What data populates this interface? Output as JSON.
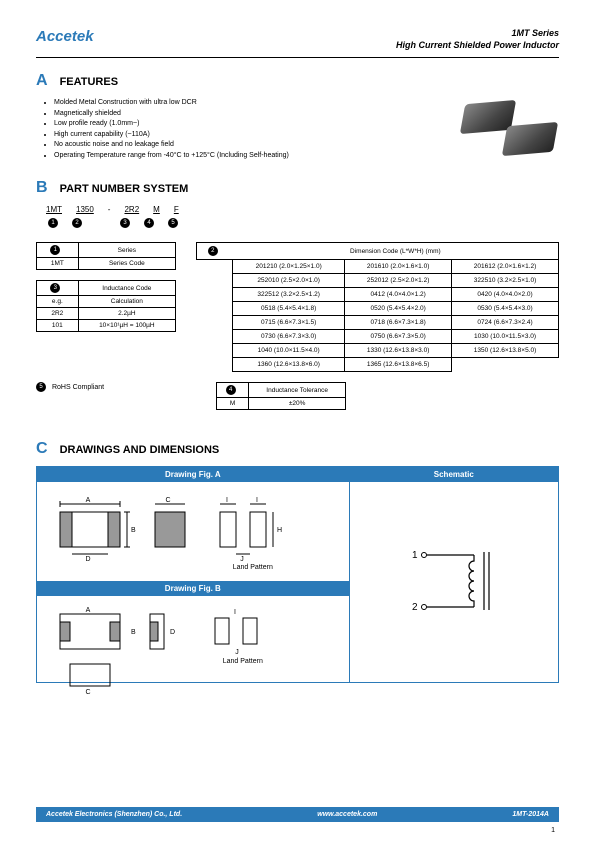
{
  "brand": "Accetek",
  "header": {
    "line1": "1MT Series",
    "line2": "High  Current  Shielded  Power  Inductor"
  },
  "sectionA": {
    "letter": "A",
    "title": "FEATURES",
    "items": [
      "Molded Metal Construction with ultra low DCR",
      "Magnetically shielded",
      "Low profile ready (1.0mm~)",
      "High current capability (~110A)",
      "No acoustic noise and no leakage field",
      "Operating Temperature range from -40°C to +125°C (Including Self-heating)"
    ]
  },
  "sectionB": {
    "letter": "B",
    "title": "PART NUMBER SYSTEM",
    "parts": [
      "1MT",
      "1350",
      "-",
      "2R2",
      "M",
      "F"
    ],
    "partDots": [
      "1",
      "2",
      "",
      "3",
      "4",
      "5"
    ],
    "seriesTable": {
      "hdr": "Series",
      "rows": [
        [
          "1MT",
          "Series Code"
        ]
      ]
    },
    "inductanceTable": {
      "hdr": "Inductance Code",
      "rows": [
        [
          "e.g.",
          "Calculation"
        ],
        [
          "2R2",
          "2.2µH"
        ],
        [
          "101",
          "10×10¹µH = 100µH"
        ]
      ]
    },
    "dimHeader": "Dimension Code (L*W*H) (mm)",
    "dimRows": [
      [
        "201210 (2.0×1.25×1.0)",
        "201610 (2.0×1.6×1.0)",
        "201612 (2.0×1.6×1.2)"
      ],
      [
        "252010 (2.5×2.0×1.0)",
        "252012 (2.5×2.0×1.2)",
        "322510 (3.2×2.5×1.0)"
      ],
      [
        "322512 (3.2×2.5×1.2)",
        "0412 (4.0×4.0×1.2)",
        "0420 (4.0×4.0×2.0)"
      ],
      [
        "0518 (5.4×5.4×1.8)",
        "0520 (5.4×5.4×2.0)",
        "0530 (5.4×5.4×3.0)"
      ],
      [
        "0715 (6.6×7.3×1.5)",
        "0718 (6.6×7.3×1.8)",
        "0724 (6.6×7.3×2.4)"
      ],
      [
        "0730 (6.6×7.3×3.0)",
        "0750 (6.6×7.3×5.0)",
        "1030 (10.0×11.5×3.0)"
      ],
      [
        "1040 (10.0×11.5×4.0)",
        "1330 (12.6×13.8×3.0)",
        "1350 (12.6×13.8×5.0)"
      ],
      [
        "1360 (12.6×13.8×6.0)",
        "1365 (12.6×13.8×6.5)",
        ""
      ]
    ],
    "rohs": "RoHS Compliant",
    "tolHdr": "Inductance Tolerance",
    "tolRows": [
      [
        "M",
        "±20%"
      ]
    ]
  },
  "sectionC": {
    "letter": "C",
    "title": "DRAWINGS AND DIMENSIONS",
    "figA": "Drawing Fig. A",
    "figB": "Drawing Fig. B",
    "schematic": "Schematic",
    "landPattern": "Land Pattern",
    "labels": {
      "A": "A",
      "B": "B",
      "C": "C",
      "D": "D",
      "H": "H",
      "I": "I",
      "J": "J",
      "1": "1",
      "2": "2"
    }
  },
  "footer": {
    "left": "Accetek Electronics (Shenzhen) Co., Ltd.",
    "center": "www.accetek.com",
    "right": "1MT-2014A"
  },
  "pageNum": "1",
  "colors": {
    "brand": "#2b7ab8",
    "text": "#000000",
    "footerText": "#ffffff"
  },
  "dotLabels": {
    "d1": "1",
    "d2": "2",
    "d3": "3",
    "d4": "4",
    "d5": "5"
  }
}
